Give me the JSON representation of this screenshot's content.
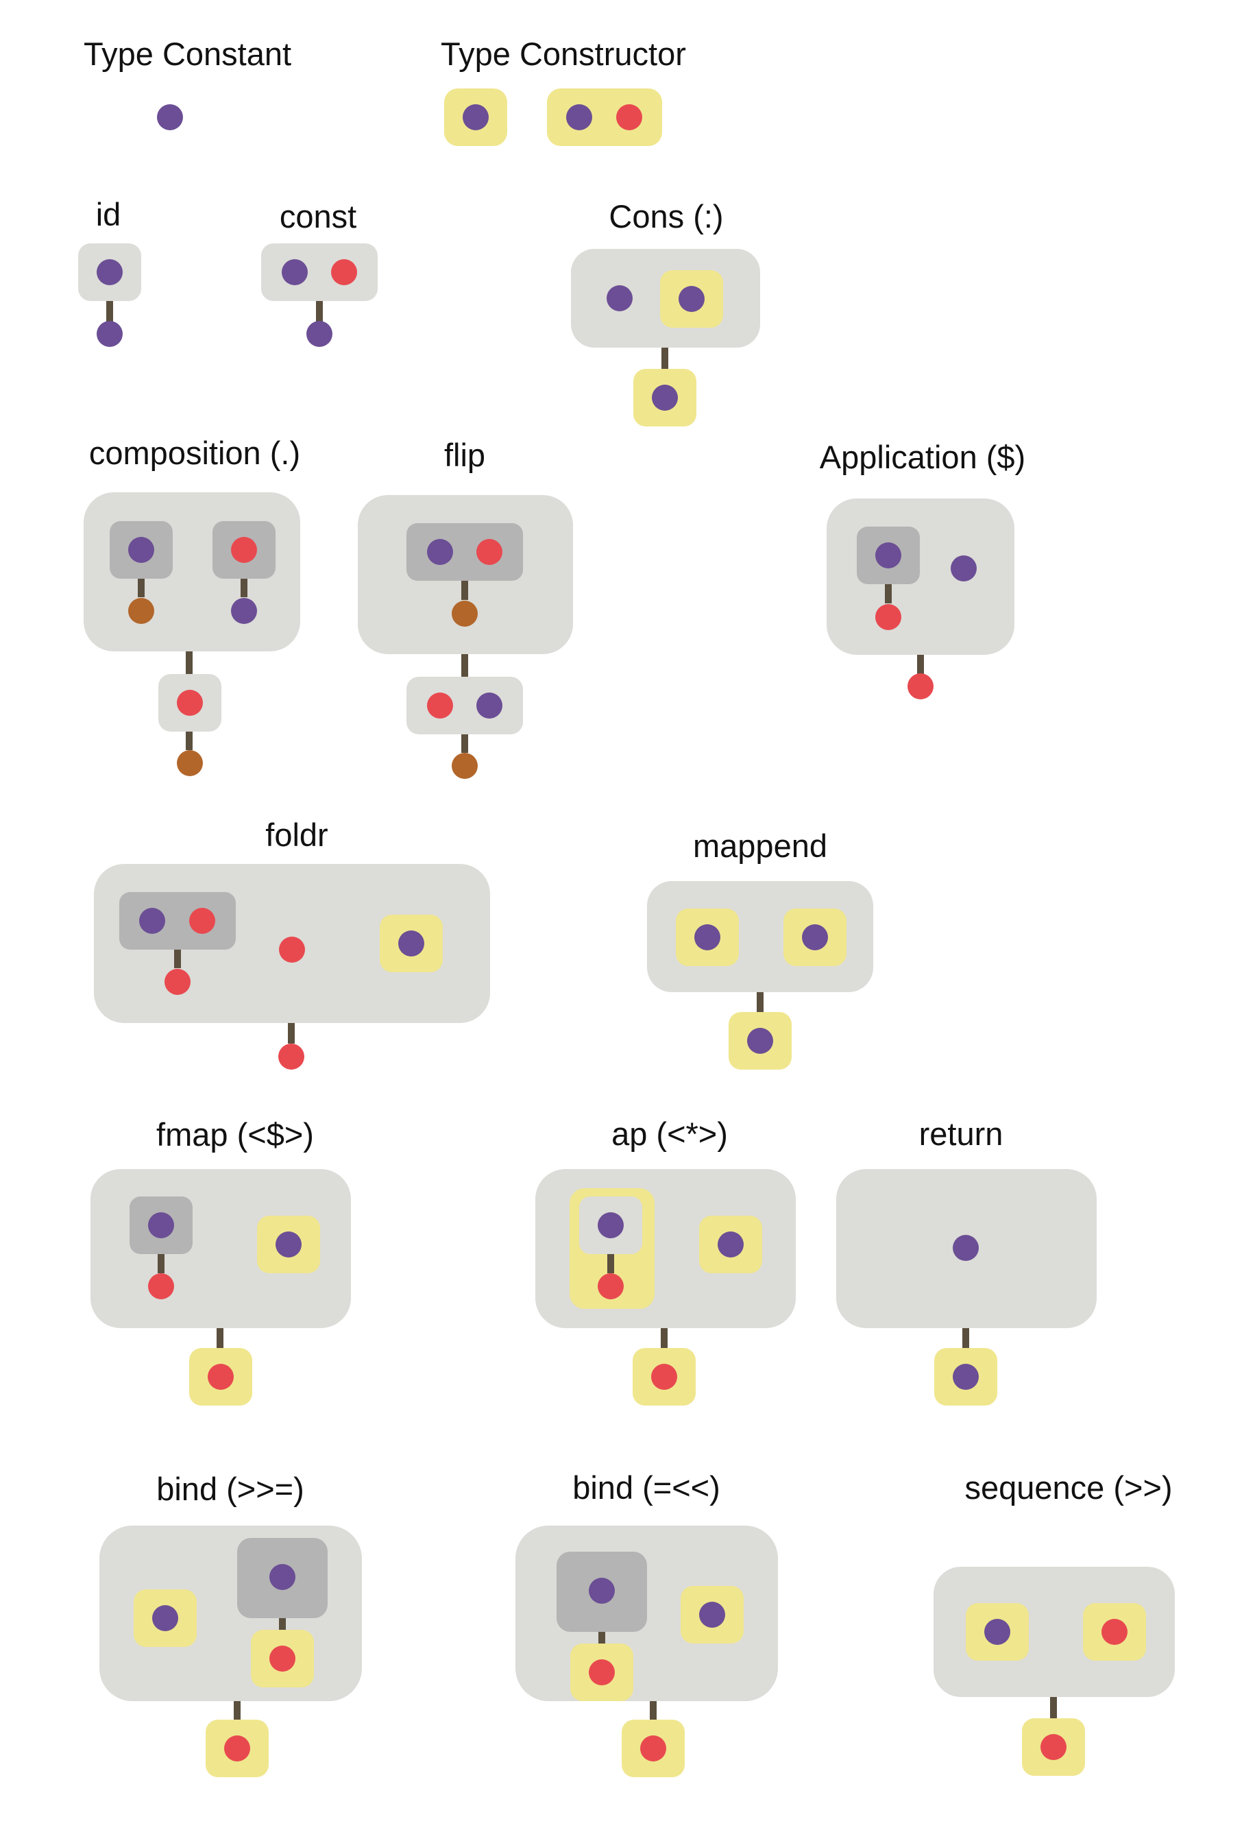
{
  "colors": {
    "type_dot": "#6b4e95",
    "type_dot_alt": "#e8494f",
    "type_dot_result": "#b2662a",
    "box_light": "#dcdcd8",
    "box_dark": "#b4b4b4",
    "box_constructor": "#f0e68e",
    "stem": "#5b4f3e"
  },
  "labels": {
    "type_constant": "Type Constant",
    "type_constructor": "Type Constructor",
    "id": "id",
    "const": "const",
    "cons": "Cons (:)",
    "composition": "composition (.)",
    "flip": "flip",
    "application": "Application ($)",
    "foldr": "foldr",
    "mappend": "mappend",
    "fmap": "fmap (<$>)",
    "ap": "ap (<*>)",
    "return": "return",
    "bind_right": "bind (>>=)",
    "bind_left": "bind (=<<)",
    "sequence": "sequence (>>)"
  }
}
